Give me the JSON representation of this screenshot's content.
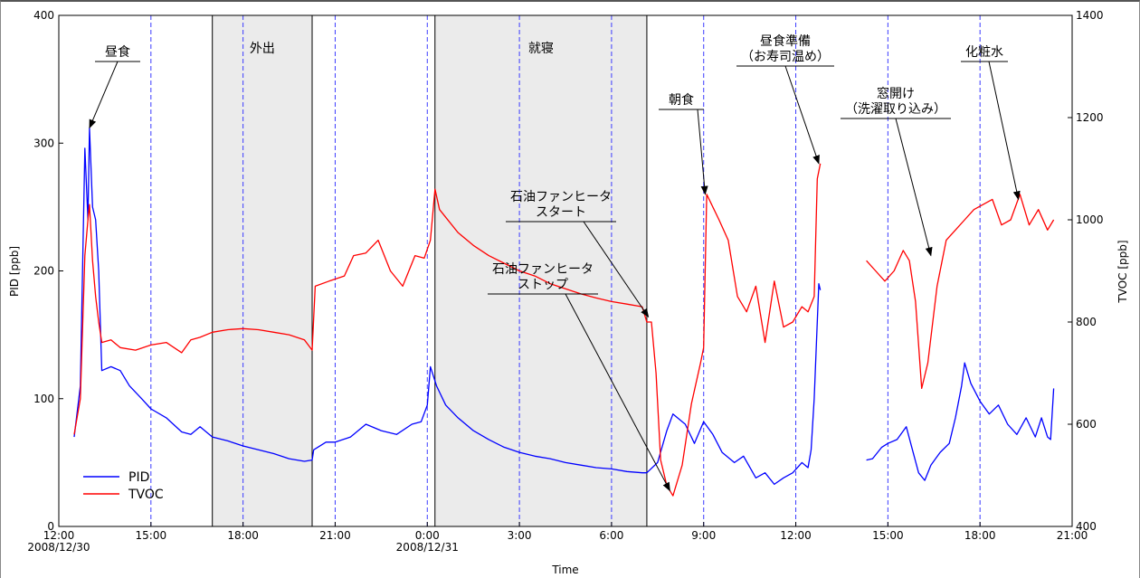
{
  "chart_data": {
    "type": "line",
    "title": "",
    "xlabel": "Time",
    "ylabel_left": "PID [ppb]",
    "ylabel_right": "TVOC [ppb]",
    "x_range_hours": [
      12,
      45
    ],
    "ylim_left": [
      0,
      400
    ],
    "ylim_right": [
      400,
      1400
    ],
    "grid": false,
    "legend_position": "bottom-left",
    "x_ticks": [
      {
        "h": 12,
        "label": "12:00"
      },
      {
        "h": 15,
        "label": "15:00"
      },
      {
        "h": 18,
        "label": "18:00"
      },
      {
        "h": 21,
        "label": "21:00"
      },
      {
        "h": 24,
        "label": "0:00"
      },
      {
        "h": 27,
        "label": "3:00"
      },
      {
        "h": 30,
        "label": "6:00"
      },
      {
        "h": 33,
        "label": "9:00"
      },
      {
        "h": 36,
        "label": "12:00"
      },
      {
        "h": 39,
        "label": "15:00"
      },
      {
        "h": 42,
        "label": "18:00"
      },
      {
        "h": 45,
        "label": "21:00"
      }
    ],
    "date_labels": [
      {
        "h": 12,
        "label": "2008/12/30"
      },
      {
        "h": 24,
        "label": "2008/12/31"
      }
    ],
    "y_ticks_left": [
      0,
      100,
      200,
      300,
      400
    ],
    "y_ticks_right": [
      400,
      600,
      800,
      1000,
      1200,
      1400
    ],
    "blue_reference_lines_hours": [
      15,
      18,
      21,
      24,
      27,
      30,
      33,
      36,
      39,
      42
    ],
    "shaded_periods": [
      {
        "label": "外出",
        "start_h": 17.0,
        "end_h": 20.25
      },
      {
        "label": "就寝",
        "start_h": 24.25,
        "end_h": 31.15
      }
    ],
    "series": [
      {
        "name": "PID",
        "color": "#0000ff",
        "axis": "left",
        "points": [
          [
            12.5,
            70
          ],
          [
            12.7,
            110
          ],
          [
            12.85,
            296
          ],
          [
            12.95,
            240
          ],
          [
            13.0,
            312
          ],
          [
            13.1,
            250
          ],
          [
            13.2,
            240
          ],
          [
            13.3,
            200
          ],
          [
            13.4,
            122
          ],
          [
            13.7,
            125
          ],
          [
            14.0,
            122
          ],
          [
            14.3,
            110
          ],
          [
            14.7,
            100
          ],
          [
            15.0,
            92
          ],
          [
            15.5,
            85
          ],
          [
            16.0,
            74
          ],
          [
            16.3,
            72
          ],
          [
            16.6,
            78
          ],
          [
            17.0,
            70
          ],
          [
            17.5,
            67
          ],
          [
            18.0,
            63
          ],
          [
            18.5,
            60
          ],
          [
            19.0,
            57
          ],
          [
            19.5,
            53
          ],
          [
            20.0,
            51
          ],
          [
            20.25,
            52
          ],
          [
            20.3,
            60
          ],
          [
            20.7,
            66
          ],
          [
            21.0,
            66
          ],
          [
            21.5,
            70
          ],
          [
            22.0,
            80
          ],
          [
            22.5,
            75
          ],
          [
            23.0,
            72
          ],
          [
            23.5,
            80
          ],
          [
            23.8,
            82
          ],
          [
            24.0,
            95
          ],
          [
            24.1,
            125
          ],
          [
            24.3,
            110
          ],
          [
            24.6,
            95
          ],
          [
            25.0,
            85
          ],
          [
            25.5,
            75
          ],
          [
            26.0,
            68
          ],
          [
            26.5,
            62
          ],
          [
            27.0,
            58
          ],
          [
            27.5,
            55
          ],
          [
            28.0,
            53
          ],
          [
            28.5,
            50
          ],
          [
            29.0,
            48
          ],
          [
            29.5,
            46
          ],
          [
            30.0,
            45
          ],
          [
            30.5,
            43
          ],
          [
            31.0,
            42
          ],
          [
            31.15,
            42
          ],
          [
            31.5,
            50
          ],
          [
            31.8,
            75
          ],
          [
            32.0,
            88
          ],
          [
            32.4,
            80
          ],
          [
            32.7,
            65
          ],
          [
            33.0,
            82
          ],
          [
            33.3,
            72
          ],
          [
            33.6,
            58
          ],
          [
            34.0,
            50
          ],
          [
            34.3,
            55
          ],
          [
            34.7,
            38
          ],
          [
            35.0,
            42
          ],
          [
            35.3,
            33
          ],
          [
            35.6,
            38
          ],
          [
            35.9,
            42
          ],
          [
            36.2,
            50
          ],
          [
            36.4,
            46
          ],
          [
            36.5,
            60
          ],
          [
            36.6,
            100
          ],
          [
            36.7,
            160
          ],
          [
            36.75,
            190
          ],
          [
            36.8,
            185
          ],
          [
            38.3,
            52
          ],
          [
            38.5,
            53
          ],
          [
            38.8,
            62
          ],
          [
            39.0,
            65
          ],
          [
            39.3,
            68
          ],
          [
            39.6,
            78
          ],
          [
            39.8,
            60
          ],
          [
            40.0,
            42
          ],
          [
            40.2,
            36
          ],
          [
            40.4,
            48
          ],
          [
            40.7,
            58
          ],
          [
            41.0,
            65
          ],
          [
            41.2,
            85
          ],
          [
            41.4,
            110
          ],
          [
            41.5,
            128
          ],
          [
            41.7,
            112
          ],
          [
            42.0,
            98
          ],
          [
            42.3,
            88
          ],
          [
            42.6,
            95
          ],
          [
            42.9,
            80
          ],
          [
            43.2,
            72
          ],
          [
            43.5,
            85
          ],
          [
            43.8,
            70
          ],
          [
            44.0,
            85
          ],
          [
            44.2,
            70
          ],
          [
            44.3,
            68
          ],
          [
            44.4,
            108
          ]
        ]
      },
      {
        "name": "TVOC",
        "color": "#ff0000",
        "axis": "right",
        "points": [
          [
            12.5,
            580
          ],
          [
            12.7,
            650
          ],
          [
            12.85,
            930
          ],
          [
            12.95,
            1000
          ],
          [
            13.0,
            1030
          ],
          [
            13.1,
            920
          ],
          [
            13.2,
            850
          ],
          [
            13.3,
            800
          ],
          [
            13.4,
            760
          ],
          [
            13.7,
            765
          ],
          [
            14.0,
            750
          ],
          [
            14.5,
            745
          ],
          [
            15.0,
            755
          ],
          [
            15.5,
            760
          ],
          [
            16.0,
            740
          ],
          [
            16.3,
            765
          ],
          [
            16.6,
            770
          ],
          [
            17.0,
            780
          ],
          [
            17.5,
            785
          ],
          [
            18.0,
            787
          ],
          [
            18.5,
            785
          ],
          [
            19.0,
            780
          ],
          [
            19.5,
            775
          ],
          [
            20.0,
            765
          ],
          [
            20.25,
            745
          ],
          [
            20.35,
            870
          ],
          [
            20.8,
            880
          ],
          [
            21.3,
            890
          ],
          [
            21.6,
            930
          ],
          [
            22.0,
            935
          ],
          [
            22.4,
            960
          ],
          [
            22.8,
            900
          ],
          [
            23.2,
            870
          ],
          [
            23.6,
            930
          ],
          [
            23.9,
            925
          ],
          [
            24.1,
            960
          ],
          [
            24.25,
            1060
          ],
          [
            24.4,
            1020
          ],
          [
            25.0,
            975
          ],
          [
            25.5,
            950
          ],
          [
            26.0,
            930
          ],
          [
            26.5,
            915
          ],
          [
            27.0,
            900
          ],
          [
            27.5,
            890
          ],
          [
            28.0,
            875
          ],
          [
            28.5,
            865
          ],
          [
            29.0,
            855
          ],
          [
            29.5,
            847
          ],
          [
            30.0,
            840
          ],
          [
            30.5,
            835
          ],
          [
            31.0,
            830
          ],
          [
            31.15,
            800
          ],
          [
            31.3,
            800
          ],
          [
            31.45,
            700
          ],
          [
            31.6,
            530
          ],
          [
            31.8,
            480
          ],
          [
            32.0,
            460
          ],
          [
            32.3,
            520
          ],
          [
            32.6,
            640
          ],
          [
            32.9,
            720
          ],
          [
            33.0,
            750
          ],
          [
            33.1,
            1050
          ],
          [
            33.5,
            1000
          ],
          [
            33.8,
            960
          ],
          [
            34.1,
            850
          ],
          [
            34.4,
            820
          ],
          [
            34.7,
            870
          ],
          [
            35.0,
            760
          ],
          [
            35.3,
            880
          ],
          [
            35.6,
            790
          ],
          [
            35.9,
            800
          ],
          [
            36.2,
            830
          ],
          [
            36.4,
            820
          ],
          [
            36.6,
            850
          ],
          [
            36.7,
            1080
          ],
          [
            36.8,
            1110
          ],
          [
            38.3,
            920
          ],
          [
            38.6,
            900
          ],
          [
            38.9,
            880
          ],
          [
            39.2,
            900
          ],
          [
            39.5,
            940
          ],
          [
            39.7,
            920
          ],
          [
            39.9,
            840
          ],
          [
            40.1,
            670
          ],
          [
            40.3,
            720
          ],
          [
            40.6,
            870
          ],
          [
            40.9,
            960
          ],
          [
            41.2,
            980
          ],
          [
            41.5,
            1000
          ],
          [
            41.8,
            1020
          ],
          [
            42.1,
            1030
          ],
          [
            42.4,
            1040
          ],
          [
            42.7,
            990
          ],
          [
            43.0,
            1000
          ],
          [
            43.3,
            1050
          ],
          [
            43.6,
            990
          ],
          [
            43.9,
            1020
          ],
          [
            44.2,
            980
          ],
          [
            44.4,
            1000
          ]
        ]
      }
    ],
    "annotations": [
      {
        "lines": [
          "昼食"
        ],
        "arrow_to_h": 13.0,
        "arrow_to_series": "PID",
        "arrow_to_value": 312
      },
      {
        "lines": [
          "石油ファンヒータ",
          "スタート"
        ],
        "arrow_to_h": 31.2,
        "arrow_to_series": "TVOC",
        "arrow_to_value": 810
      },
      {
        "lines": [
          "石油ファンヒータ",
          "ストップ"
        ],
        "arrow_to_h": 31.9,
        "arrow_to_series": "TVOC",
        "arrow_to_value": 470
      },
      {
        "lines": [
          "朝食"
        ],
        "arrow_to_h": 33.05,
        "arrow_to_series": "TVOC",
        "arrow_to_value": 1050
      },
      {
        "lines": [
          "昼食準備",
          "（お寿司温め）"
        ],
        "arrow_to_h": 36.75,
        "arrow_to_series": "TVOC",
        "arrow_to_value": 1110
      },
      {
        "lines": [
          "窓開け",
          "（洗濯取り込み）"
        ],
        "arrow_to_h": 40.4,
        "arrow_to_series": "TVOC",
        "arrow_to_value": 930
      },
      {
        "lines": [
          "化粧水"
        ],
        "arrow_to_h": 43.25,
        "arrow_to_series": "TVOC",
        "arrow_to_value": 1040
      }
    ]
  }
}
